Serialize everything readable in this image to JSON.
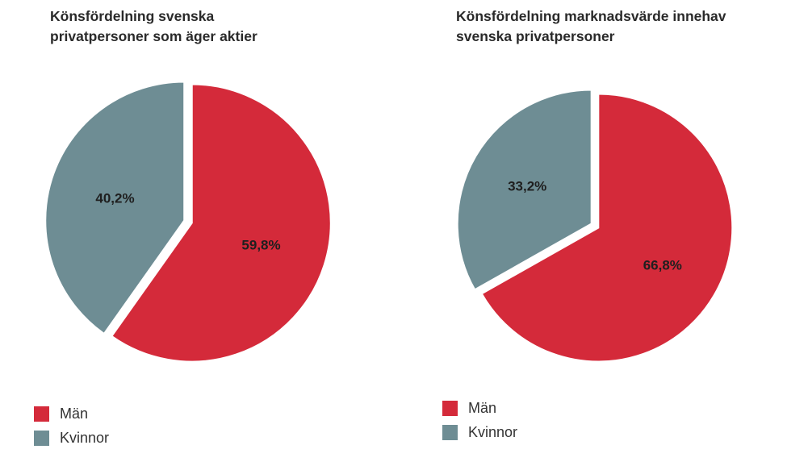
{
  "colors": {
    "man": "#d42a3a",
    "kvinnor": "#6e8d94",
    "separator": "#ffffff"
  },
  "chart_data": [
    {
      "type": "pie",
      "title": "Könsfördelning svenska privatpersoner som äger aktier",
      "title_lines": [
        "Könsfördelning svenska",
        "privatpersoner som äger aktier"
      ],
      "slices": [
        {
          "name": "Män",
          "value": 59.8,
          "label": "59,8%",
          "color": "#d42a3a"
        },
        {
          "name": "Kvinnor",
          "value": 40.2,
          "label": "40,2%",
          "color": "#6e8d94"
        }
      ],
      "legend": [
        "Män",
        "Kvinnor"
      ],
      "legend_position": "bottom-left"
    },
    {
      "type": "pie",
      "title": "Könsfördelning marknadsvärde innehav svenska privatpersoner",
      "title_lines": [
        "Könsfördelning marknadsvärde innehav",
        "svenska privatpersoner"
      ],
      "slices": [
        {
          "name": "Män",
          "value": 66.8,
          "label": "66,8%",
          "color": "#d42a3a"
        },
        {
          "name": "Kvinnor",
          "value": 33.2,
          "label": "33,2%",
          "color": "#6e8d94"
        }
      ],
      "legend": [
        "Män",
        "Kvinnor"
      ],
      "legend_position": "bottom-left"
    }
  ]
}
